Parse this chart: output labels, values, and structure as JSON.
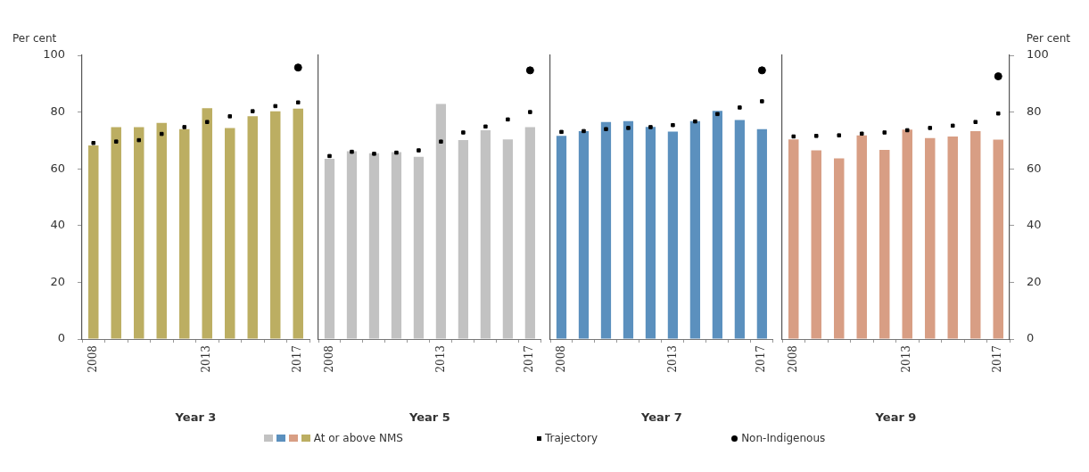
{
  "chart_data": [
    {
      "type": "bar",
      "xlabel": "Year 3",
      "ylabel": "Per cent",
      "categories": [
        "2008",
        null,
        null,
        null,
        null,
        "2013",
        null,
        null,
        null,
        "2017"
      ],
      "ylim": [
        0,
        100
      ],
      "yticks": [
        0,
        20,
        40,
        60,
        80,
        100
      ],
      "grid": false,
      "legend": "bottom",
      "series": [
        {
          "name": "At or above NMS",
          "color": "#bcae62",
          "values": [
            68.2,
            74.7,
            74.7,
            76.2,
            74,
            81.4,
            74.4,
            78.5,
            80.3,
            81.2
          ]
        },
        {
          "name": "Trajectory",
          "type": "scatter",
          "marker": "square",
          "color": "#000000",
          "values": [
            69.1,
            69.6,
            70.1,
            72.3,
            74.7,
            76.5,
            78.5,
            80.3,
            82.1,
            83.4
          ]
        },
        {
          "name": "Non-Indigenous",
          "type": "scatter",
          "marker": "circle",
          "color": "#000000",
          "values": [
            null,
            null,
            null,
            null,
            null,
            null,
            null,
            null,
            null,
            95.7
          ]
        }
      ]
    },
    {
      "type": "bar",
      "xlabel": "Year 5",
      "categories": [
        "2008",
        null,
        null,
        null,
        null,
        "2013",
        null,
        null,
        null,
        "2017"
      ],
      "ylim": [
        0,
        100
      ],
      "yticks": [
        0,
        20,
        40,
        60,
        80,
        100
      ],
      "grid": false,
      "tick_labels": "x",
      "series": [
        {
          "color": "#c2c2c2",
          "values": [
            63.5,
            66.2,
            65.5,
            65.9,
            64.2,
            82.9,
            70.1,
            73.6,
            70.4,
            74.7
          ]
        },
        {
          "type": "scatter",
          "marker": "square",
          "color": "#000000",
          "values": [
            64.5,
            66,
            65.3,
            65.7,
            66.5,
            69.6,
            72.8,
            74.9,
            77.4,
            80
          ]
        },
        {
          "type": "scatter",
          "marker": "circle",
          "color": "#000000",
          "values": [
            null,
            null,
            null,
            null,
            null,
            null,
            null,
            null,
            null,
            94.7
          ]
        }
      ]
    },
    {
      "type": "bar",
      "xlabel": "Year 7",
      "categories": [
        "2008",
        null,
        null,
        null,
        null,
        "2013",
        null,
        null,
        null,
        "2017"
      ],
      "ylim": [
        0,
        100
      ],
      "yticks": [
        0,
        20,
        40,
        60,
        80,
        100
      ],
      "grid": false,
      "tick_labels": "x",
      "series": [
        {
          "color": "#5b90be",
          "values": [
            71.6,
            73.3,
            76.5,
            76.8,
            74.8,
            73.1,
            76.8,
            80.4,
            77.2,
            74
          ]
        },
        {
          "type": "scatter",
          "marker": "square",
          "color": "#000000",
          "values": [
            73,
            73.3,
            74,
            74.4,
            74.7,
            75.4,
            76.7,
            79.3,
            81.6,
            83.8
          ]
        },
        {
          "type": "scatter",
          "marker": "circle",
          "color": "#000000",
          "values": [
            null,
            null,
            null,
            null,
            null,
            null,
            null,
            null,
            null,
            94.7
          ]
        }
      ]
    },
    {
      "type": "bar",
      "xlabel": "Year 9",
      "y2label": "Per cent",
      "categories": [
        "2008",
        null,
        null,
        null,
        null,
        "2013",
        null,
        null,
        null,
        "2017"
      ],
      "y2lim": [
        0,
        100
      ],
      "y2ticks": [
        0,
        20,
        40,
        60,
        80,
        100
      ],
      "grid": false,
      "series": [
        {
          "axis": "y2",
          "color": "#d89e84",
          "values": [
            70.4,
            66.5,
            63.7,
            71.8,
            66.7,
            73.8,
            70.8,
            71.4,
            73.3,
            70.3
          ]
        },
        {
          "type": "scatter",
          "axis": "y2",
          "marker": "square",
          "color": "#000000",
          "values": [
            71.4,
            71.6,
            71.8,
            72.4,
            72.8,
            73.6,
            74.4,
            75.2,
            76.5,
            79.5
          ]
        },
        {
          "type": "scatter",
          "axis": "y2",
          "marker": "circle",
          "color": "#000000",
          "values": [
            null,
            null,
            null,
            null,
            null,
            null,
            null,
            null,
            null,
            92.6
          ]
        }
      ]
    }
  ]
}
